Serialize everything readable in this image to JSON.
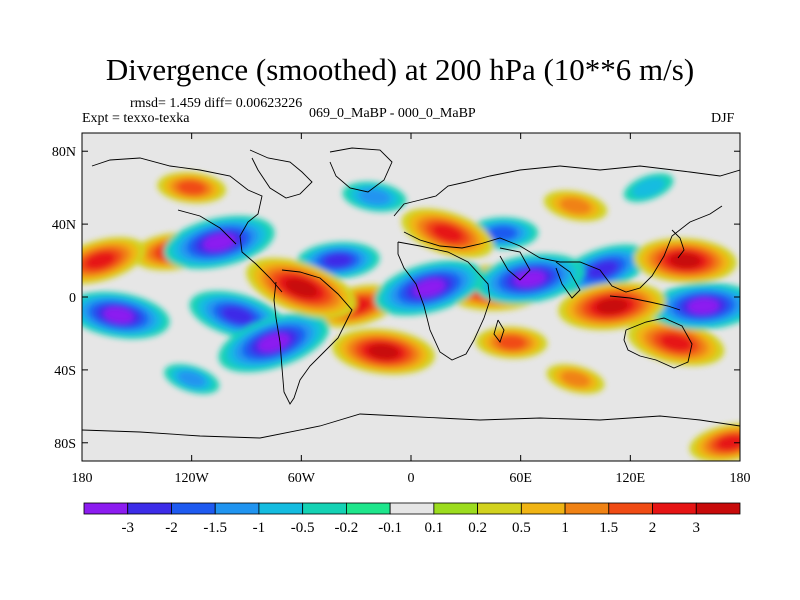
{
  "chart_data": {
    "type": "heatmap",
    "title": "Divergence (smoothed) at 200 hPa (10**6 m/s)",
    "stats_label": "rmsd= 1.459 diff= 0.00623226",
    "experiment_label": "Expt = texxo-texka",
    "comparison_label": "069_0_MaBP - 000_0_MaBP",
    "season": "DJF",
    "x_axis": {
      "range": [
        -180,
        180
      ],
      "ticks": [
        -180,
        -120,
        -60,
        0,
        60,
        120,
        180
      ],
      "tick_labels": [
        "180",
        "120W",
        "60W",
        "0",
        "60E",
        "120E",
        "180"
      ]
    },
    "y_axis": {
      "range": [
        -90,
        90
      ],
      "ticks": [
        80,
        40,
        0,
        -40,
        -80
      ],
      "tick_labels": [
        "80N",
        "40N",
        "0",
        "40S",
        "80S"
      ]
    },
    "colorbar": {
      "levels": [
        "-3",
        "-2",
        "-1.5",
        "-1",
        "-0.5",
        "-0.2",
        "-0.1",
        "0.1",
        "0.2",
        "0.5",
        "1",
        "1.5",
        "2",
        "3"
      ],
      "colors": [
        "#8c1cf0",
        "#3c2ce8",
        "#1e5af0",
        "#2094f0",
        "#14bce0",
        "#14d2b4",
        "#1ee68c",
        "#e6e6e6",
        "#9cdc1e",
        "#d2d21e",
        "#f0b414",
        "#f08214",
        "#f04b14",
        "#e61414",
        "#c80a0a"
      ]
    },
    "features": [
      {
        "lon": -105,
        "lat": 30,
        "value": -3.2
      },
      {
        "lon": -75,
        "lat": -25,
        "value": -3.3
      },
      {
        "lon": -95,
        "lat": -10,
        "value": -2.6
      },
      {
        "lon": 10,
        "lat": 5,
        "value": -3.2
      },
      {
        "lon": 65,
        "lat": 10,
        "value": -3.1
      },
      {
        "lon": 160,
        "lat": -5,
        "value": -3.0
      },
      {
        "lon": 105,
        "lat": 15,
        "value": -2.5
      },
      {
        "lon": -160,
        "lat": -10,
        "value": -2.8
      },
      {
        "lon": -40,
        "lat": 20,
        "value": -2.0
      },
      {
        "lon": -60,
        "lat": 5,
        "value": 3.3
      },
      {
        "lon": -15,
        "lat": -30,
        "value": 2.8
      },
      {
        "lon": 45,
        "lat": 5,
        "value": 2.9
      },
      {
        "lon": 110,
        "lat": -5,
        "value": 3.0
      },
      {
        "lon": 20,
        "lat": 35,
        "value": 2.5
      },
      {
        "lon": 150,
        "lat": 20,
        "value": 2.8
      },
      {
        "lon": -170,
        "lat": 20,
        "value": 2.4
      },
      {
        "lon": -130,
        "lat": 25,
        "value": 2.0
      },
      {
        "lon": -30,
        "lat": -5,
        "value": 2.2
      },
      {
        "lon": 145,
        "lat": -25,
        "value": 2.6
      },
      {
        "lon": -120,
        "lat": 60,
        "value": 1.4
      },
      {
        "lon": 55,
        "lat": -25,
        "value": 1.5
      },
      {
        "lon": 90,
        "lat": 50,
        "value": 1.2
      },
      {
        "lon": -20,
        "lat": 55,
        "value": -1.2
      },
      {
        "lon": 50,
        "lat": 35,
        "value": -1.5
      },
      {
        "lon": -120,
        "lat": -45,
        "value": -0.9
      },
      {
        "lon": 130,
        "lat": 60,
        "value": -0.7
      },
      {
        "lon": 90,
        "lat": -45,
        "value": 1.0
      },
      {
        "lon": 175,
        "lat": -80,
        "value": 2.0
      }
    ]
  }
}
